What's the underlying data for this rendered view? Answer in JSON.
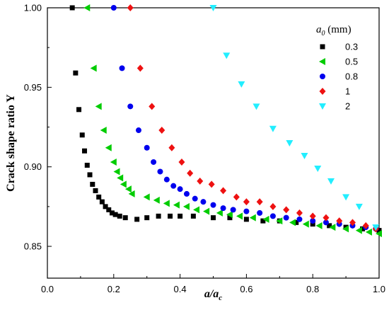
{
  "chart_data": {
    "type": "scatter",
    "title": "",
    "xlabel_main": "a/a",
    "xlabel_sub": "c",
    "ylabel": "Crack shape ratio Y",
    "xlim": [
      0.0,
      1.0
    ],
    "ylim": [
      0.83,
      1.0
    ],
    "xticks": [
      "0.0",
      "0.2",
      "0.4",
      "0.6",
      "0.8",
      "1.0"
    ],
    "yticks": [
      "0.85",
      "0.90",
      "0.95",
      "1.00"
    ],
    "grid": false,
    "legend": {
      "position": "top-right",
      "title_main": "a",
      "title_sub": "0",
      "title_unit": " (mm)"
    },
    "series": [
      {
        "name": "0.3",
        "marker": "square",
        "color": "#000000",
        "points": [
          [
            0.075,
            1.0
          ],
          [
            0.085,
            0.959
          ],
          [
            0.095,
            0.936
          ],
          [
            0.105,
            0.92
          ],
          [
            0.112,
            0.91
          ],
          [
            0.12,
            0.901
          ],
          [
            0.128,
            0.895
          ],
          [
            0.136,
            0.889
          ],
          [
            0.145,
            0.885
          ],
          [
            0.155,
            0.881
          ],
          [
            0.165,
            0.878
          ],
          [
            0.175,
            0.875
          ],
          [
            0.185,
            0.873
          ],
          [
            0.195,
            0.871
          ],
          [
            0.205,
            0.87
          ],
          [
            0.218,
            0.869
          ],
          [
            0.235,
            0.868
          ],
          [
            0.27,
            0.867
          ],
          [
            0.3,
            0.868
          ],
          [
            0.335,
            0.869
          ],
          [
            0.37,
            0.869
          ],
          [
            0.4,
            0.869
          ],
          [
            0.44,
            0.869
          ],
          [
            0.5,
            0.868
          ],
          [
            0.55,
            0.868
          ],
          [
            0.6,
            0.867
          ],
          [
            0.65,
            0.866
          ],
          [
            0.7,
            0.866
          ],
          [
            0.75,
            0.865
          ],
          [
            0.8,
            0.864
          ],
          [
            0.85,
            0.863
          ],
          [
            0.9,
            0.862
          ],
          [
            0.95,
            0.861
          ],
          [
            1.0,
            0.86
          ]
        ]
      },
      {
        "name": "0.5",
        "marker": "triangle-left",
        "color": "#00cc00",
        "points": [
          [
            0.12,
            1.0
          ],
          [
            0.14,
            0.962
          ],
          [
            0.155,
            0.938
          ],
          [
            0.17,
            0.923
          ],
          [
            0.185,
            0.912
          ],
          [
            0.2,
            0.903
          ],
          [
            0.21,
            0.897
          ],
          [
            0.22,
            0.893
          ],
          [
            0.23,
            0.889
          ],
          [
            0.245,
            0.886
          ],
          [
            0.255,
            0.883
          ],
          [
            0.3,
            0.881
          ],
          [
            0.33,
            0.879
          ],
          [
            0.36,
            0.877
          ],
          [
            0.39,
            0.876
          ],
          [
            0.42,
            0.875
          ],
          [
            0.45,
            0.873
          ],
          [
            0.48,
            0.872
          ],
          [
            0.52,
            0.871
          ],
          [
            0.55,
            0.87
          ],
          [
            0.58,
            0.869
          ],
          [
            0.62,
            0.868
          ],
          [
            0.66,
            0.867
          ],
          [
            0.7,
            0.866
          ],
          [
            0.74,
            0.865
          ],
          [
            0.78,
            0.864
          ],
          [
            0.82,
            0.863
          ],
          [
            0.86,
            0.862
          ],
          [
            0.9,
            0.861
          ],
          [
            0.94,
            0.86
          ],
          [
            0.97,
            0.859
          ],
          [
            1.0,
            0.858
          ]
        ]
      },
      {
        "name": "0.8",
        "marker": "circle",
        "color": "#0000ee",
        "points": [
          [
            0.2,
            1.0
          ],
          [
            0.225,
            0.962
          ],
          [
            0.25,
            0.938
          ],
          [
            0.275,
            0.923
          ],
          [
            0.3,
            0.912
          ],
          [
            0.32,
            0.903
          ],
          [
            0.34,
            0.897
          ],
          [
            0.36,
            0.892
          ],
          [
            0.38,
            0.888
          ],
          [
            0.4,
            0.886
          ],
          [
            0.42,
            0.883
          ],
          [
            0.445,
            0.88
          ],
          [
            0.47,
            0.878
          ],
          [
            0.5,
            0.876
          ],
          [
            0.53,
            0.874
          ],
          [
            0.56,
            0.873
          ],
          [
            0.6,
            0.872
          ],
          [
            0.64,
            0.871
          ],
          [
            0.68,
            0.869
          ],
          [
            0.72,
            0.868
          ],
          [
            0.76,
            0.867
          ],
          [
            0.8,
            0.866
          ],
          [
            0.84,
            0.865
          ],
          [
            0.88,
            0.864
          ],
          [
            0.92,
            0.863
          ],
          [
            0.96,
            0.862
          ],
          [
            0.99,
            0.861
          ]
        ]
      },
      {
        "name": "1",
        "marker": "diamond",
        "color": "#ee1111",
        "points": [
          [
            0.25,
            1.0
          ],
          [
            0.28,
            0.962
          ],
          [
            0.315,
            0.938
          ],
          [
            0.345,
            0.923
          ],
          [
            0.375,
            0.912
          ],
          [
            0.405,
            0.903
          ],
          [
            0.43,
            0.896
          ],
          [
            0.46,
            0.891
          ],
          [
            0.495,
            0.889
          ],
          [
            0.53,
            0.885
          ],
          [
            0.57,
            0.881
          ],
          [
            0.6,
            0.878
          ],
          [
            0.64,
            0.878
          ],
          [
            0.68,
            0.875
          ],
          [
            0.72,
            0.873
          ],
          [
            0.76,
            0.871
          ],
          [
            0.8,
            0.869
          ],
          [
            0.84,
            0.868
          ],
          [
            0.88,
            0.866
          ],
          [
            0.92,
            0.865
          ],
          [
            0.96,
            0.863
          ],
          [
            0.99,
            0.861
          ]
        ]
      },
      {
        "name": "2",
        "marker": "triangle-down",
        "color": "#22eeff",
        "points": [
          [
            0.5,
            1.0
          ],
          [
            0.54,
            0.97
          ],
          [
            0.585,
            0.952
          ],
          [
            0.63,
            0.938
          ],
          [
            0.68,
            0.924
          ],
          [
            0.73,
            0.915
          ],
          [
            0.775,
            0.907
          ],
          [
            0.815,
            0.899
          ],
          [
            0.855,
            0.891
          ],
          [
            0.9,
            0.881
          ],
          [
            0.94,
            0.875
          ],
          [
            0.99,
            0.862
          ]
        ]
      }
    ]
  }
}
